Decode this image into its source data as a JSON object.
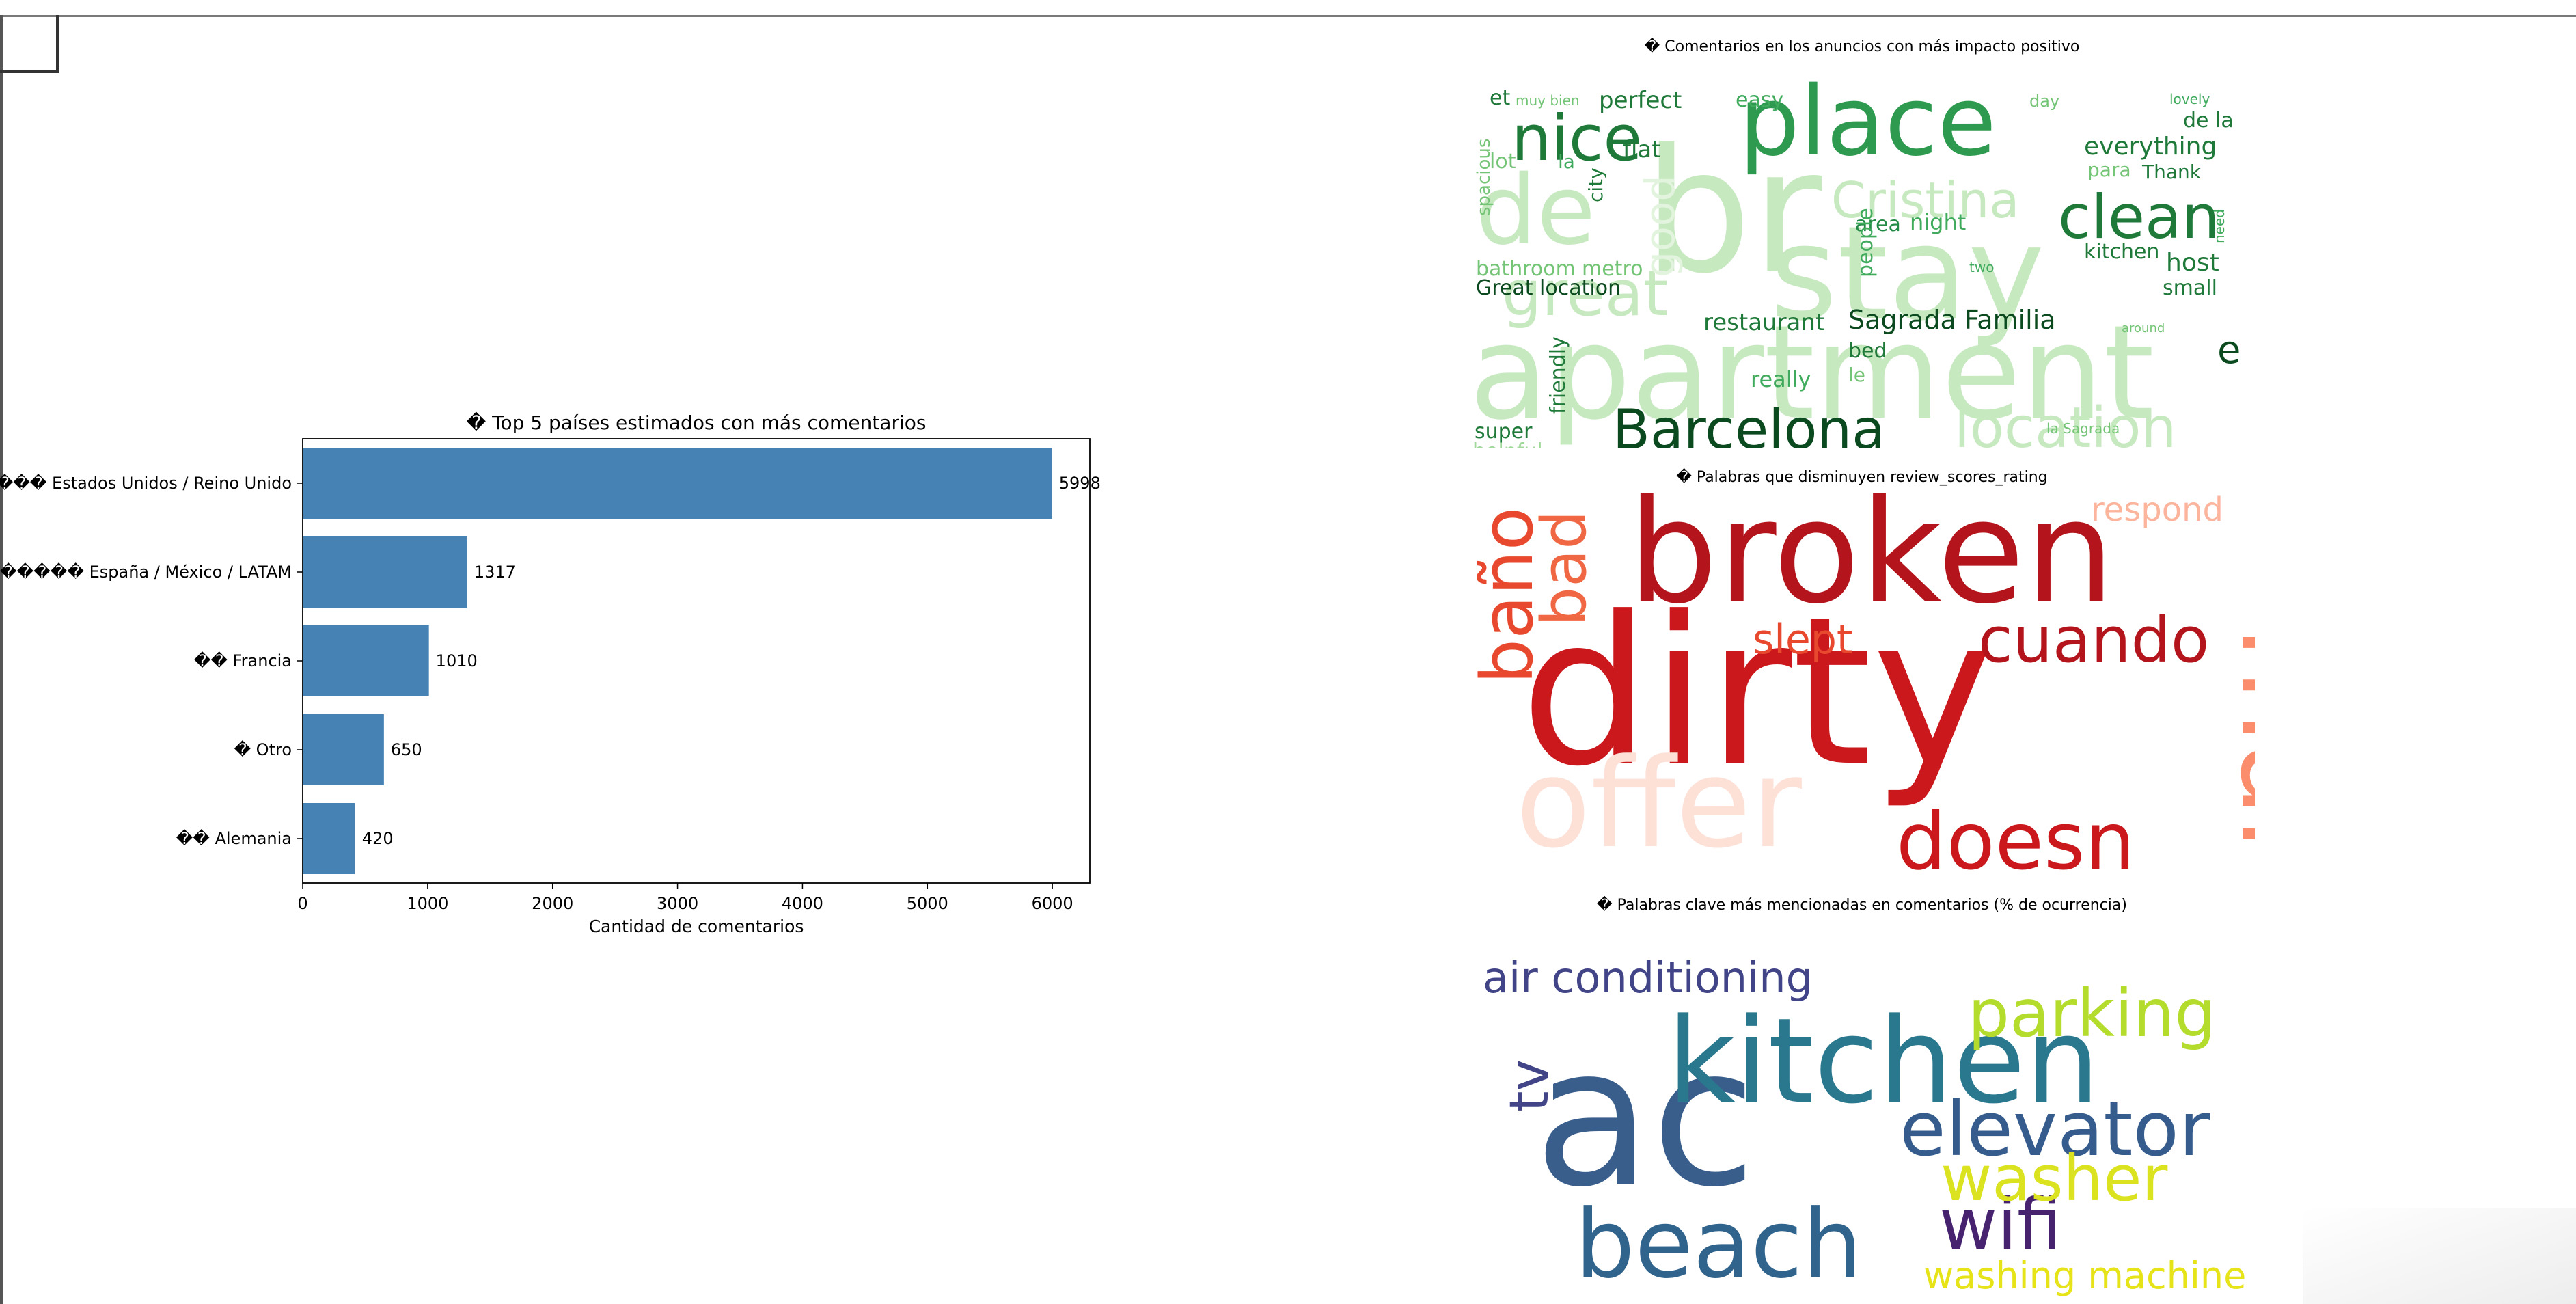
{
  "chart_data": [
    {
      "type": "bar",
      "orientation": "horizontal",
      "title": "� Top 5 países estimados con más comentarios",
      "xlabel": "Cantidad de comentarios",
      "ylabel": "",
      "categories": [
        "����� Estados Unidos / Reino Unido",
        "������ España / México / LATAM",
        "�� Francia",
        "� Otro",
        "�� Alemania"
      ],
      "values": [
        5998,
        1317,
        1010,
        650,
        420
      ],
      "xlim": [
        0,
        6300
      ],
      "xticks": [
        0,
        1000,
        2000,
        3000,
        4000,
        5000,
        6000
      ],
      "bar_color": "#4682b4",
      "grid": false,
      "data_labels": true
    },
    {
      "type": "wordcloud",
      "title": "� Comentarios en los anuncios con más impacto positivo",
      "colormap": "Greens",
      "words": [
        {
          "text": "apartment",
          "weight": 100,
          "color": "#c7e9c0"
        },
        {
          "text": "br",
          "weight": 92,
          "color": "#c7e9c0"
        },
        {
          "text": "stay",
          "weight": 86,
          "color": "#c7e9c0"
        },
        {
          "text": "place",
          "weight": 80,
          "color": "#2e9a4f"
        },
        {
          "text": "de",
          "weight": 60,
          "color": "#c7e9c0"
        },
        {
          "text": "great",
          "weight": 54,
          "color": "#c7e9c0"
        },
        {
          "text": "nice",
          "weight": 52,
          "color": "#1f7a3a"
        },
        {
          "text": "clean",
          "weight": 50,
          "color": "#1f7a3a"
        },
        {
          "text": "location",
          "weight": 48,
          "color": "#c7e9c0"
        },
        {
          "text": "Barcelona",
          "weight": 46,
          "color": "#0a4a1e"
        },
        {
          "text": "Cristina",
          "weight": 40,
          "color": "#c7e9c0"
        },
        {
          "text": "good",
          "weight": 36,
          "color": "#e2f4dd"
        },
        {
          "text": "e",
          "weight": 32,
          "color": "#0a4a1e"
        },
        {
          "text": "Sagrada Familia",
          "weight": 24,
          "color": "#0a4a1e"
        },
        {
          "text": "everything",
          "weight": 24,
          "color": "#1f7a3a"
        },
        {
          "text": "restaurant",
          "weight": 24,
          "color": "#1f7a3a"
        },
        {
          "text": "perfect",
          "weight": 24,
          "color": "#1f7a3a"
        },
        {
          "text": "host",
          "weight": 24,
          "color": "#1f7a3a"
        },
        {
          "text": "flat",
          "weight": 24,
          "color": "#1f7a3a"
        },
        {
          "text": "helpful",
          "weight": 24,
          "color": "#a1d99b"
        },
        {
          "text": "Great location",
          "weight": 22,
          "color": "#0a4a1e"
        },
        {
          "text": "bathroom",
          "weight": 22,
          "color": "#74c476"
        },
        {
          "text": "metro",
          "weight": 22,
          "color": "#74c476"
        },
        {
          "text": "night",
          "weight": 22,
          "color": "#41ab5d"
        },
        {
          "text": "area",
          "weight": 22,
          "color": "#238b45"
        },
        {
          "text": "kitchen",
          "weight": 22,
          "color": "#1f7a3a"
        },
        {
          "text": "friendly",
          "weight": 22,
          "color": "#1f7a3a"
        },
        {
          "text": "people",
          "weight": 22,
          "color": "#41ab5d"
        },
        {
          "text": "really",
          "weight": 22,
          "color": "#41ab5d"
        },
        {
          "text": "super",
          "weight": 22,
          "color": "#1f7a3a"
        },
        {
          "text": "bed",
          "weight": 22,
          "color": "#1f7a3a"
        },
        {
          "text": "small",
          "weight": 22,
          "color": "#1f7a3a"
        },
        {
          "text": "Thank",
          "weight": 22,
          "color": "#1f7a3a"
        },
        {
          "text": "de la",
          "weight": 22,
          "color": "#1f7a3a"
        },
        {
          "text": "easy",
          "weight": 20,
          "color": "#41ab5d"
        },
        {
          "text": "et",
          "weight": 20,
          "color": "#1f7a3a"
        },
        {
          "text": "para",
          "weight": 20,
          "color": "#74c476"
        },
        {
          "text": "lot",
          "weight": 20,
          "color": "#74c476"
        },
        {
          "text": "la",
          "weight": 20,
          "color": "#41ab5d"
        },
        {
          "text": "city",
          "weight": 20,
          "color": "#1f7a3a"
        },
        {
          "text": "spacious",
          "weight": 20,
          "color": "#74c476"
        },
        {
          "text": "le",
          "weight": 18,
          "color": "#74c476"
        },
        {
          "text": "muy bien",
          "weight": 14,
          "color": "#74c476"
        },
        {
          "text": "lovely",
          "weight": 14,
          "color": "#41ab5d"
        },
        {
          "text": "la Sagrada",
          "weight": 14,
          "color": "#74c476"
        },
        {
          "text": "day",
          "weight": 16,
          "color": "#74c476"
        },
        {
          "text": "two",
          "weight": 14,
          "color": "#41ab5d"
        },
        {
          "text": "need",
          "weight": 14,
          "color": "#41ab5d"
        },
        {
          "text": "around",
          "weight": 12,
          "color": "#74c476"
        }
      ]
    },
    {
      "type": "wordcloud",
      "title": "� Palabras que disminuyen review_scores_rating",
      "colormap": "Reds",
      "words": [
        {
          "text": "dirty",
          "weight": 100,
          "color": "#cb181d"
        },
        {
          "text": "broken",
          "weight": 70,
          "color": "#b4141b"
        },
        {
          "text": "offer",
          "weight": 62,
          "color": "#fde0d6"
        },
        {
          "text": "mal",
          "weight": 58,
          "color": "#fb8c6c"
        },
        {
          "text": "doesn",
          "weight": 40,
          "color": "#cb181d"
        },
        {
          "text": "baño",
          "weight": 36,
          "color": "#e8492e"
        },
        {
          "text": "cuando",
          "weight": 32,
          "color": "#b4141b"
        },
        {
          "text": "bad",
          "weight": 30,
          "color": "#f06744"
        },
        {
          "text": "slept",
          "weight": 26,
          "color": "#e8492e"
        },
        {
          "text": "respond",
          "weight": 22,
          "color": "#fcb49c"
        }
      ]
    },
    {
      "type": "wordcloud",
      "title": "� Palabras clave más mencionadas en comentarios (% de ocurrencia)",
      "colormap": "viridis",
      "words": [
        {
          "text": "ac",
          "weight": 100,
          "color": "#3a5e8c"
        },
        {
          "text": "kitchen",
          "weight": 70,
          "color": "#2a788e"
        },
        {
          "text": "beach",
          "weight": 58,
          "color": "#31648d"
        },
        {
          "text": "elevator",
          "weight": 44,
          "color": "#365c8d"
        },
        {
          "text": "wifi",
          "weight": 42,
          "color": "#46226f"
        },
        {
          "text": "parking",
          "weight": 36,
          "color": "#b4dc2c"
        },
        {
          "text": "washer",
          "weight": 34,
          "color": "#dbe21f"
        },
        {
          "text": "air conditioning",
          "weight": 26,
          "color": "#414487"
        },
        {
          "text": "tv",
          "weight": 26,
          "color": "#414487"
        },
        {
          "text": "washing machine",
          "weight": 22,
          "color": "#e6e419"
        }
      ]
    }
  ]
}
